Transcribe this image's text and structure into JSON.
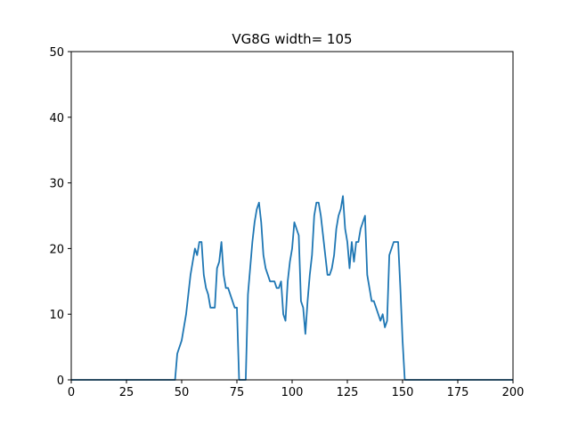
{
  "chart_data": {
    "type": "line",
    "title": "VG8G width= 105",
    "xlabel": "",
    "ylabel": "",
    "xlim": [
      0,
      200
    ],
    "ylim": [
      0,
      50
    ],
    "xticks": [
      0,
      25,
      50,
      75,
      100,
      125,
      150,
      175,
      200
    ],
    "yticks": [
      0,
      10,
      20,
      30,
      40,
      50
    ],
    "grid": false,
    "series_color": "#1f77b4",
    "series": [
      {
        "x": [
          0,
          47,
          48,
          50,
          52,
          54,
          55,
          56,
          57,
          58,
          59,
          60,
          61,
          62,
          63,
          64,
          65,
          66,
          67,
          68,
          69,
          70,
          71,
          72,
          73,
          74,
          75,
          76,
          77,
          78,
          79,
          80,
          81,
          82,
          83,
          84,
          85,
          86,
          87,
          88,
          89,
          90,
          91,
          92,
          93,
          94,
          95,
          96,
          97,
          98,
          99,
          100,
          101,
          102,
          103,
          104,
          105,
          106,
          107,
          108,
          109,
          110,
          111,
          112,
          113,
          114,
          115,
          116,
          117,
          118,
          119,
          120,
          121,
          122,
          123,
          124,
          125,
          126,
          127,
          128,
          129,
          130,
          131,
          132,
          133,
          134,
          135,
          136,
          137,
          138,
          139,
          140,
          141,
          142,
          143,
          144,
          145,
          146,
          147,
          148,
          149,
          150,
          151,
          152,
          153,
          200
        ],
        "y": [
          0,
          0,
          4,
          6,
          10,
          16,
          18,
          20,
          19,
          21,
          21,
          16,
          14,
          13,
          11,
          11,
          11,
          17,
          18,
          21,
          16,
          14,
          14,
          13,
          12,
          11,
          11,
          0,
          0,
          0,
          0,
          13,
          17,
          21,
          24,
          26,
          27,
          24,
          19,
          17,
          16,
          15,
          15,
          15,
          14,
          14,
          15,
          10,
          9,
          15,
          18,
          20,
          24,
          23,
          22,
          12,
          11,
          7,
          12,
          16,
          19,
          25,
          27,
          27,
          25,
          22,
          19,
          16,
          16,
          17,
          19,
          23,
          25,
          26,
          28,
          23,
          21,
          17,
          21,
          18,
          21,
          21,
          23,
          24,
          25,
          16,
          14,
          12,
          12,
          11,
          10,
          9,
          10,
          8,
          9,
          19,
          20,
          21,
          21,
          21,
          14,
          6,
          0,
          0,
          0,
          0
        ]
      }
    ]
  }
}
